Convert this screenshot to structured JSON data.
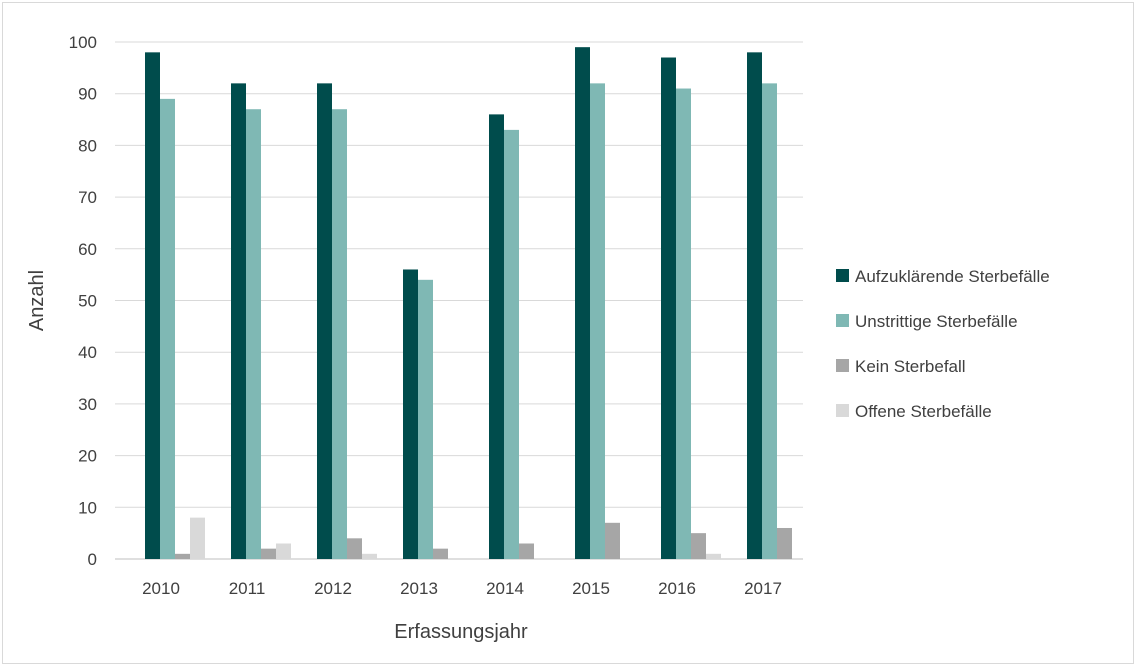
{
  "chart_data": {
    "type": "bar",
    "title": "",
    "xlabel": "Erfassungsjahr",
    "ylabel": "Anzahl",
    "ylim": [
      0,
      100
    ],
    "yticks": [
      0,
      10,
      20,
      30,
      40,
      50,
      60,
      70,
      80,
      90,
      100
    ],
    "grid": true,
    "legend_position": "right",
    "categories": [
      "2010",
      "2011",
      "2012",
      "2013",
      "2014",
      "2015",
      "2016",
      "2017"
    ],
    "series": [
      {
        "name": "Aufzuklärende Sterbefälle",
        "color": "#004c4c",
        "values": [
          98,
          92,
          92,
          56,
          86,
          99,
          97,
          98
        ]
      },
      {
        "name": "Unstrittige Sterbefälle",
        "color": "#7fb8b4",
        "values": [
          89,
          87,
          87,
          54,
          83,
          92,
          91,
          92
        ]
      },
      {
        "name": "Kein Sterbefall",
        "color": "#a6a6a6",
        "values": [
          1,
          2,
          4,
          2,
          3,
          7,
          5,
          6
        ]
      },
      {
        "name": "Offene Sterbefälle",
        "color": "#d9d9d9",
        "values": [
          8,
          3,
          1,
          0,
          0,
          0,
          1,
          0
        ]
      }
    ]
  }
}
